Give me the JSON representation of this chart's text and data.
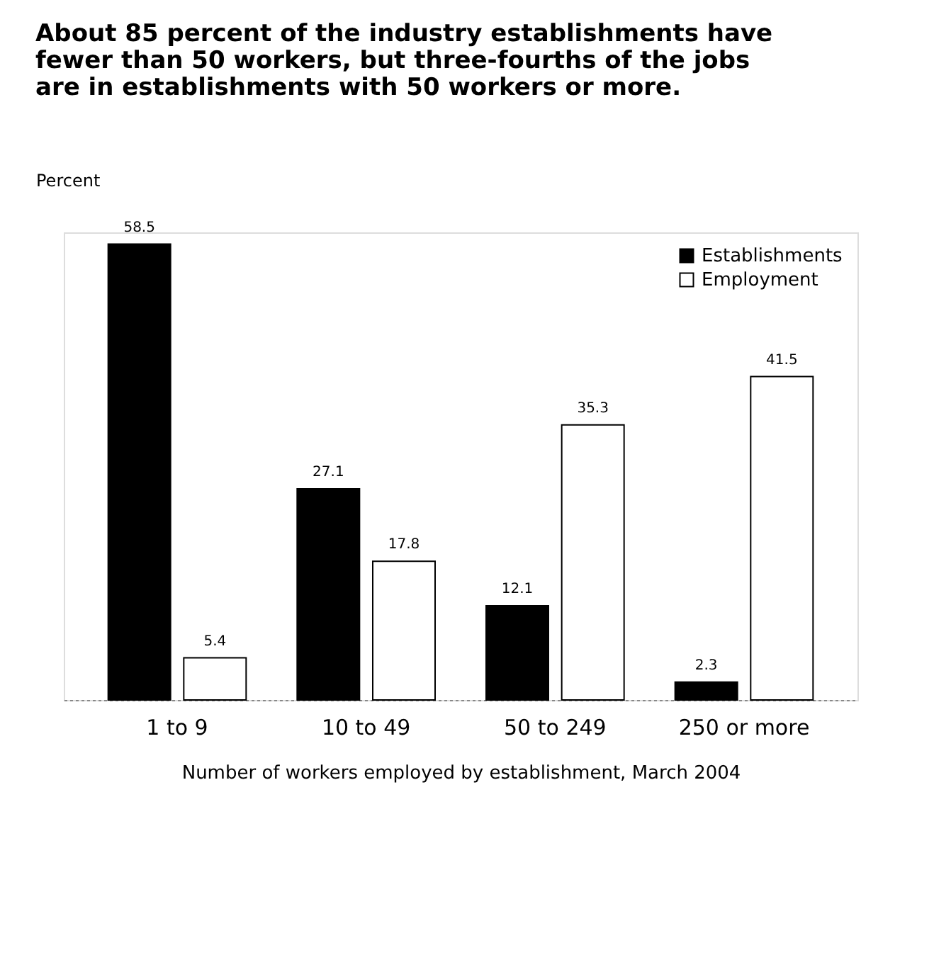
{
  "chart_data": {
    "type": "bar",
    "title": "About 85 percent of the industry establishments have fewer than 50 workers, but three-fourths of the jobs are in establishments with 50 workers or more.",
    "ylabel": "Percent",
    "xlabel": "Number of workers employed by establishment, March 2004",
    "categories": [
      "1 to 9",
      "10 to 49",
      "50 to 249",
      "250 or more"
    ],
    "series": [
      {
        "name": "Establishments",
        "color": "#000000",
        "values": [
          58.5,
          27.1,
          12.1,
          2.3
        ]
      },
      {
        "name": "Employment",
        "color": "#ffffff",
        "values": [
          5.4,
          17.8,
          35.3,
          41.5
        ]
      }
    ],
    "data_labels": true,
    "legend": "top right",
    "grid": false
  }
}
